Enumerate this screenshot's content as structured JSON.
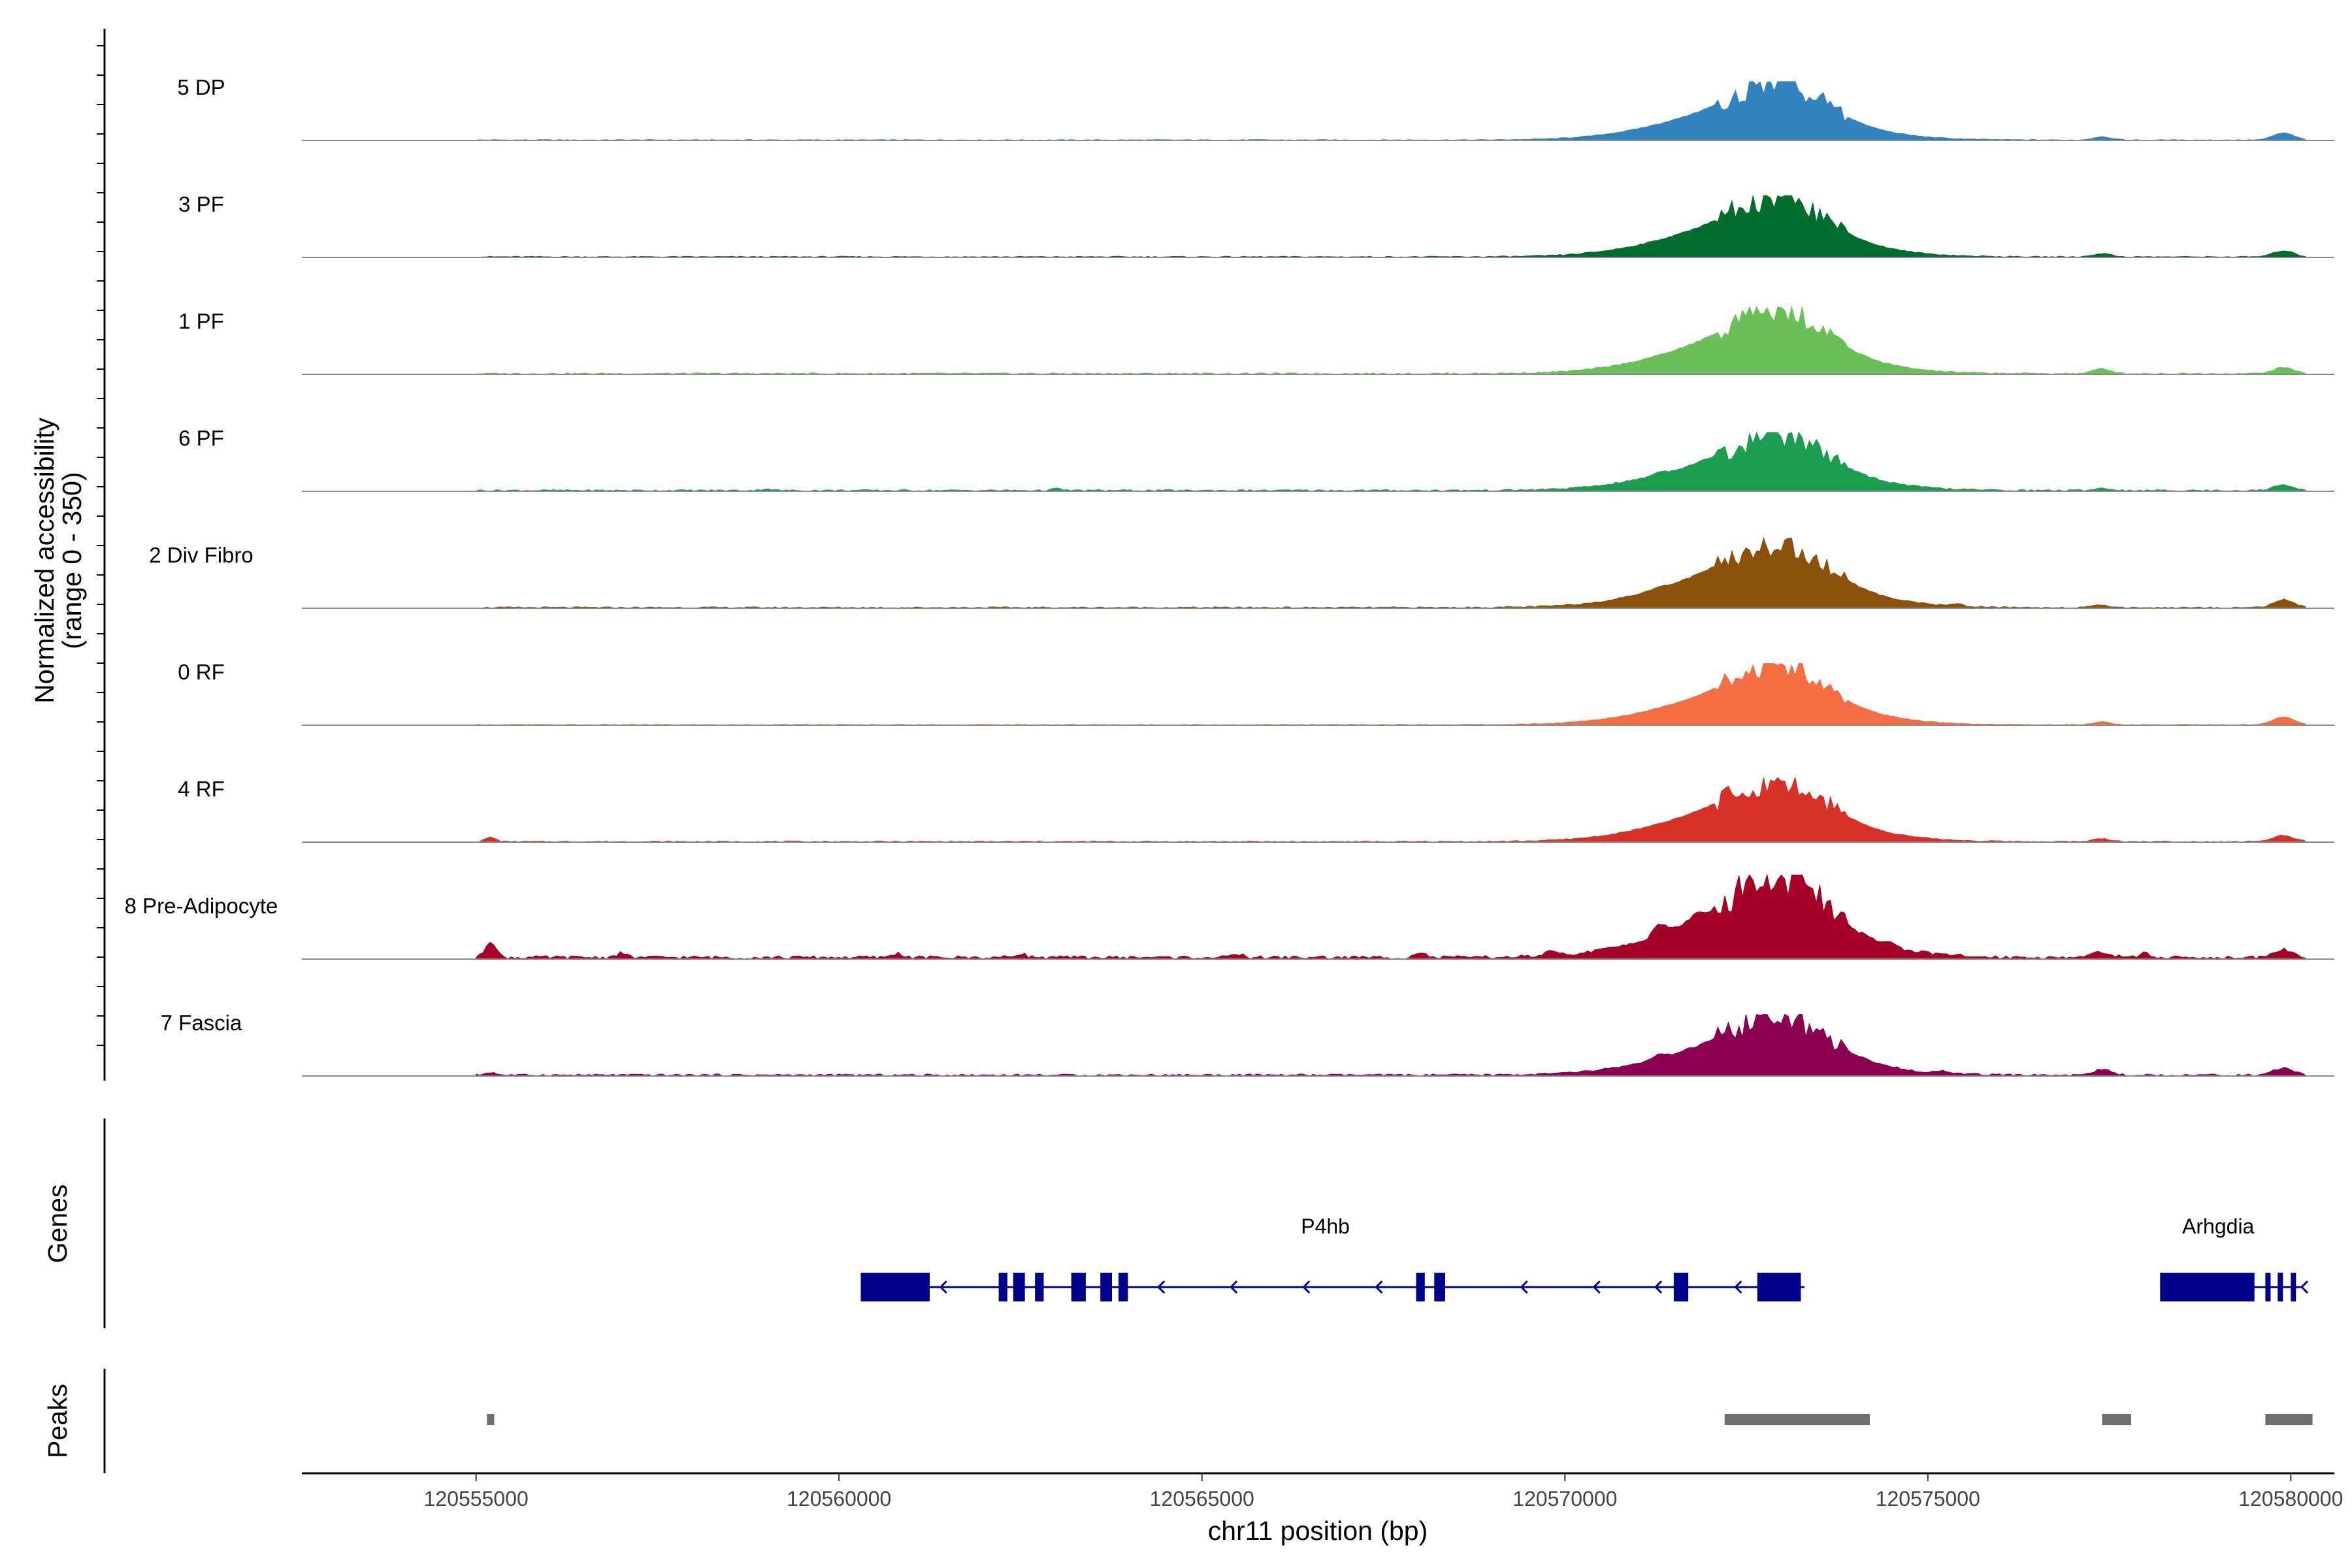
{
  "chart_data": {
    "type": "coverage",
    "region": {
      "chrom": "chr11",
      "start": 120552600,
      "end": 120580600
    },
    "y_axis": {
      "title_line1": "Normalized accessibility",
      "title_line2": "(range 0 - 350)",
      "range": [
        0,
        350
      ]
    },
    "x_axis": {
      "title": "chr11 position (bp)",
      "ticks": [
        {
          "value": 120555000,
          "label": "120555000"
        },
        {
          "value": 120560000,
          "label": "120560000"
        },
        {
          "value": 120565000,
          "label": "120565000"
        },
        {
          "value": 120570000,
          "label": "120570000"
        },
        {
          "value": 120575000,
          "label": "120575000"
        },
        {
          "value": 120580000,
          "label": "120580000"
        }
      ]
    },
    "tracks": [
      {
        "name": "5 DP",
        "color": "#3182bd",
        "bg": 3,
        "peak_max": 210,
        "features": [
          [
            120572600,
            3,
            1100
          ],
          [
            120573000,
            5,
            550
          ],
          [
            120577400,
            12,
            120
          ],
          [
            120579900,
            25,
            140
          ]
        ],
        "extra_bumps": []
      },
      {
        "name": "3 PF",
        "color": "#006d2c",
        "bg": 4,
        "peak_max": 220,
        "features": [
          [
            120572600,
            3,
            1100
          ],
          [
            120573000,
            5,
            550
          ],
          [
            120577400,
            12,
            120
          ],
          [
            120579900,
            22,
            140
          ]
        ],
        "extra_bumps": []
      },
      {
        "name": "1 PF",
        "color": "#6bbf59",
        "bg": 5,
        "peak_max": 240,
        "features": [
          [
            120572600,
            3,
            1100
          ],
          [
            120573000,
            5,
            550
          ],
          [
            120577400,
            18,
            120
          ],
          [
            120579900,
            22,
            140
          ]
        ],
        "extra_bumps": []
      },
      {
        "name": "6 PF",
        "color": "#1b9e4f",
        "bg": 6,
        "peak_max": 210,
        "features": [
          [
            120572600,
            3,
            1100
          ],
          [
            120573000,
            5,
            550
          ],
          [
            120577400,
            8,
            120
          ],
          [
            120579900,
            20,
            140
          ]
        ],
        "extra_bumps": [
          [
            120571300,
            10
          ],
          [
            120559000,
            6
          ],
          [
            120563000,
            6
          ]
        ]
      },
      {
        "name": "2 Div Fibro",
        "color": "#8c510a",
        "bg": 5,
        "peak_max": 250,
        "features": [
          [
            120572600,
            3,
            1100
          ],
          [
            120573000,
            5,
            550
          ],
          [
            120577400,
            8,
            120
          ],
          [
            120579900,
            28,
            140
          ]
        ],
        "extra_bumps": [
          [
            120571300,
            8
          ],
          [
            120575400,
            10
          ]
        ]
      },
      {
        "name": "0 RF",
        "color": "#f46d43",
        "bg": 3,
        "peak_max": 220,
        "features": [
          [
            120572600,
            3,
            1100
          ],
          [
            120573000,
            5,
            550
          ],
          [
            120577400,
            10,
            120
          ],
          [
            120579900,
            28,
            140
          ]
        ],
        "extra_bumps": []
      },
      {
        "name": "4 RF",
        "color": "#d73027",
        "bg": 4,
        "peak_max": 230,
        "features": [
          [
            120572600,
            3,
            1100
          ],
          [
            120573000,
            5,
            550
          ],
          [
            120577400,
            10,
            120
          ],
          [
            120579900,
            22,
            140
          ]
        ],
        "extra_bumps": [
          [
            120555200,
            15
          ]
        ]
      },
      {
        "name": "8 Pre-Adipocyte",
        "color": "#a50026",
        "bg": 12,
        "peak_max": 300,
        "features": [
          [
            120572600,
            3,
            1100
          ],
          [
            120573000,
            5,
            550
          ],
          [
            120577400,
            20,
            120
          ],
          [
            120579900,
            28,
            140
          ]
        ],
        "extra_bumps": [
          [
            120555200,
            60
          ],
          [
            120571300,
            40
          ],
          [
            120571800,
            20
          ],
          [
            120557000,
            15
          ],
          [
            120562500,
            15
          ],
          [
            120560800,
            15
          ],
          [
            120565500,
            12
          ],
          [
            120568000,
            18
          ],
          [
            120569800,
            15
          ],
          [
            120574500,
            18
          ],
          [
            120578000,
            15
          ]
        ]
      },
      {
        "name": "7 Fascia",
        "color": "#8b0050",
        "bg": 7,
        "peak_max": 220,
        "features": [
          [
            120572600,
            3,
            1100
          ],
          [
            120573000,
            5,
            550
          ],
          [
            120577400,
            20,
            120
          ],
          [
            120579900,
            25,
            140
          ]
        ],
        "extra_bumps": [
          [
            120555200,
            10
          ],
          [
            120571300,
            12
          ],
          [
            120575200,
            10
          ]
        ]
      }
    ],
    "genes_track": {
      "label": "Genes",
      "color": "#00008b",
      "genes": [
        {
          "name": "P4hb",
          "label_pos": 120566700,
          "strand": "-",
          "start": 120560300,
          "end": 120573300,
          "exons": [
            [
              120560300,
              120561250
            ],
            [
              120562200,
              120562320
            ],
            [
              120562400,
              120562560
            ],
            [
              120562700,
              120562820
            ],
            [
              120563200,
              120563400
            ],
            [
              120563600,
              120563760
            ],
            [
              120563850,
              120563980
            ],
            [
              120567950,
              120568070
            ],
            [
              120568200,
              120568350
            ],
            [
              120571500,
              120571700
            ],
            [
              120572650,
              120573250
            ]
          ],
          "arrows": [
            120561400,
            120564400,
            120565400,
            120566400,
            120567400,
            120569400,
            120570400,
            120571250,
            120572350
          ]
        },
        {
          "name": "Arhgdia",
          "label_pos": 120579000,
          "strand": "-",
          "start": 120578200,
          "end": 120580150,
          "exons": [
            [
              120578200,
              120579500
            ],
            [
              120579650,
              120579720
            ],
            [
              120579820,
              120579880
            ],
            [
              120580000,
              120580060
            ]
          ],
          "arrows": [
            120580150
          ]
        }
      ]
    },
    "peaks_track": {
      "label": "Peaks",
      "color": "#6e6e6e",
      "peaks": [
        [
          120555150,
          120555250
        ],
        [
          120572200,
          120574200
        ],
        [
          120577400,
          120577800
        ],
        [
          120579650,
          120580300
        ]
      ]
    }
  }
}
